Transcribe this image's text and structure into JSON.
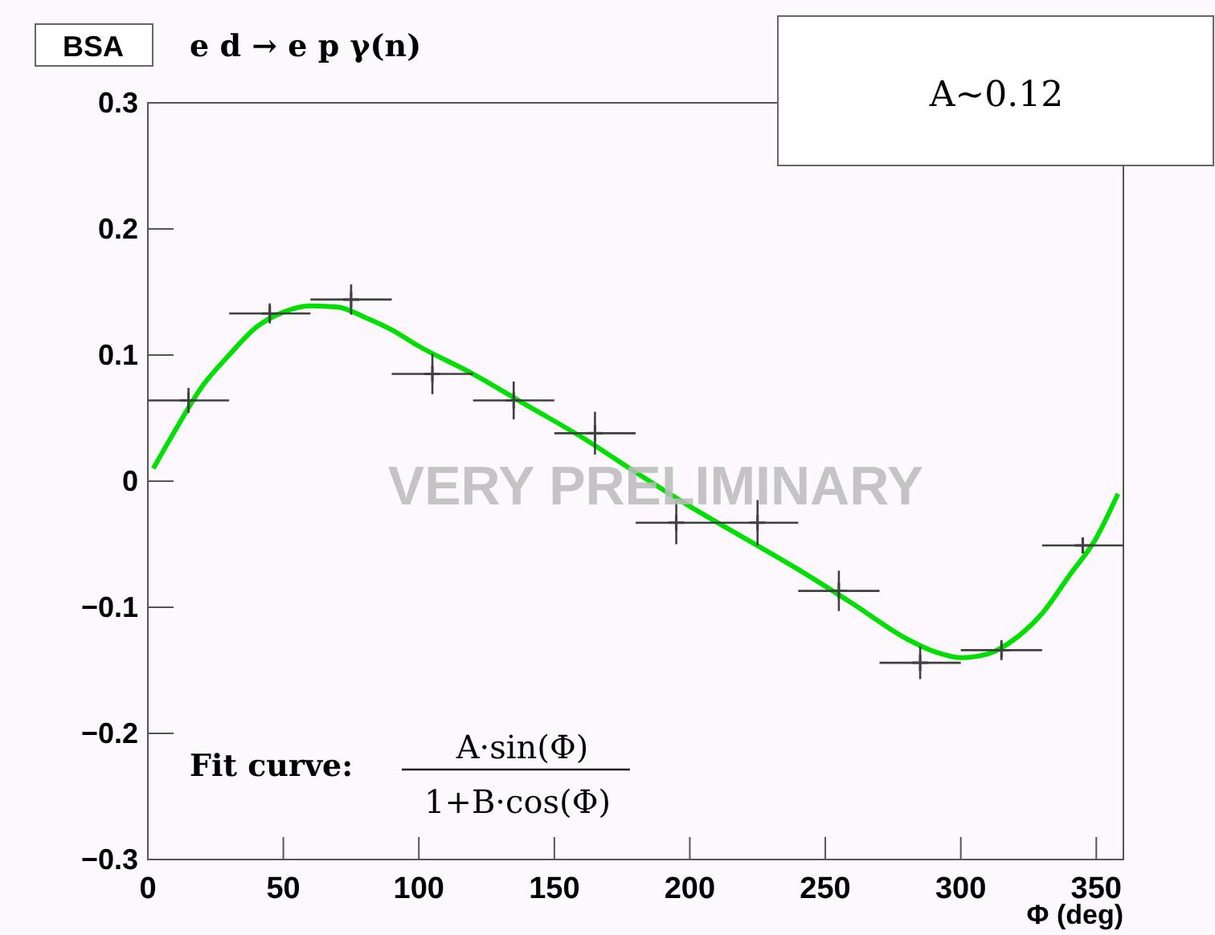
{
  "chart_data": {
    "type": "scatter",
    "title": "BSA",
    "subtitle": "e d → e p γ(n)",
    "xlabel": "Φ (deg)",
    "annotations": [
      "A~0.12",
      "Fit curve:",
      "A·sin(Φ)",
      "1+B·cos(Φ)",
      "VERY PRELIMINARY"
    ],
    "xlim": [
      0,
      360
    ],
    "xticks": [
      0,
      50,
      100,
      150,
      200,
      250,
      300,
      350
    ],
    "ylim": [
      -0.3,
      0.3
    ],
    "yticks": [
      {
        "value": -0.3,
        "label": "−0.3"
      },
      {
        "value": -0.2,
        "label": "−0.2"
      },
      {
        "value": -0.1,
        "label": "−0.1"
      },
      0,
      0.1,
      0.2,
      0.3
    ],
    "grid": false,
    "series": [
      {
        "color": "#404040",
        "marker": "cross",
        "x": [
          15,
          45,
          75,
          105,
          135,
          165,
          195,
          225,
          255,
          285,
          315,
          345
        ],
        "values": [
          0.064,
          0.133,
          0.144,
          0.085,
          0.064,
          0.038,
          -0.033,
          -0.033,
          -0.087,
          -0.144,
          -0.134,
          -0.051
        ],
        "errors": [
          0.01,
          0.008,
          0.012,
          0.016,
          0.015,
          0.017,
          0.017,
          0.018,
          0.016,
          0.013,
          0.008,
          0.006
        ],
        "xerrors": [
          15,
          15,
          15,
          15,
          15,
          15,
          15,
          15,
          15,
          15,
          15,
          15
        ]
      },
      {
        "type": "line",
        "color": "#00e000",
        "x": [
          2,
          10,
          20,
          30,
          40,
          50,
          60,
          70,
          80,
          90,
          100,
          120,
          140,
          160,
          180,
          200,
          220,
          240,
          260,
          280,
          290,
          300,
          310,
          320,
          330,
          340,
          350,
          358
        ],
        "values": [
          0.01,
          0.04,
          0.075,
          0.1,
          0.122,
          0.134,
          0.139,
          0.138,
          0.13,
          0.12,
          0.107,
          0.085,
          0.06,
          0.035,
          0.007,
          -0.02,
          -0.045,
          -0.07,
          -0.097,
          -0.125,
          -0.135,
          -0.14,
          -0.137,
          -0.125,
          -0.105,
          -0.075,
          -0.045,
          -0.01
        ]
      }
    ]
  }
}
